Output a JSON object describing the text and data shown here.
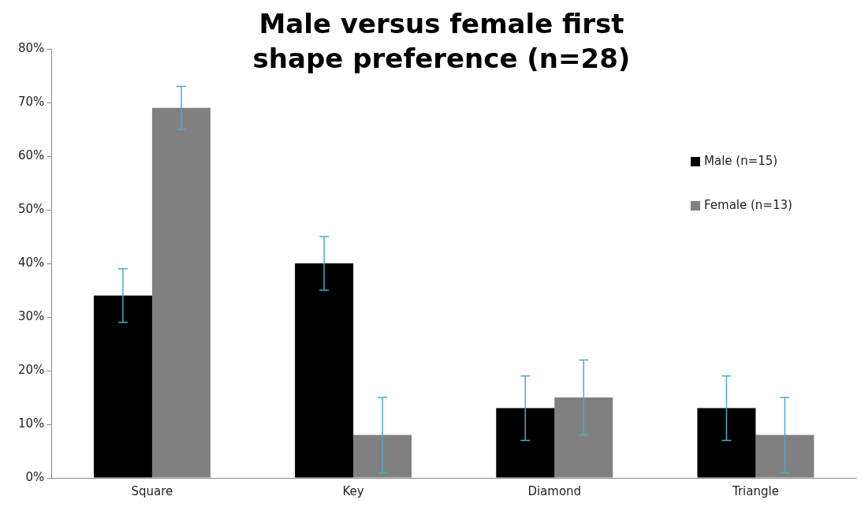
{
  "chart_data": {
    "type": "bar",
    "title": "Male versus female first shape preference (n=28)",
    "categories": [
      "Square",
      "Key",
      "Diamond",
      "Triangle"
    ],
    "series": [
      {
        "name": "Male (n=15)",
        "color": "#000000",
        "values": [
          34,
          40,
          13,
          13
        ],
        "errors": [
          5,
          5,
          6,
          6
        ]
      },
      {
        "name": "Female (n=13)",
        "color": "#808080",
        "values": [
          69,
          8,
          15,
          8
        ],
        "errors": [
          4,
          7,
          7,
          7
        ]
      }
    ],
    "ylim": [
      0,
      80
    ],
    "yticks": [
      {
        "value": 0,
        "label": "0%"
      },
      {
        "value": 10,
        "label": "10%"
      },
      {
        "value": 20,
        "label": "20%"
      },
      {
        "value": 30,
        "label": "30%"
      },
      {
        "value": 40,
        "label": "40%"
      },
      {
        "value": 50,
        "label": "50%"
      },
      {
        "value": 60,
        "label": "60%"
      },
      {
        "value": 70,
        "label": "70%"
      },
      {
        "value": 80,
        "label": "80%"
      }
    ],
    "grid": false,
    "legend": "right"
  }
}
